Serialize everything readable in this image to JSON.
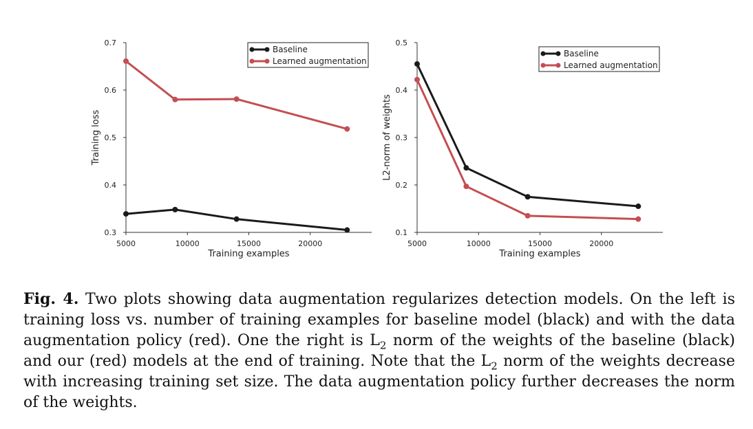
{
  "chart_data": [
    {
      "type": "line",
      "xlabel": "Training examples",
      "ylabel": "Training loss",
      "xlim": [
        5000,
        25000
      ],
      "ylim": [
        0.3,
        0.7
      ],
      "xticks": [
        5000,
        10000,
        15000,
        20000
      ],
      "yticks": [
        0.3,
        0.4,
        0.5,
        0.6,
        0.7
      ],
      "xtick_labels": [
        "5000",
        "10000",
        "15000",
        "20000"
      ],
      "ytick_labels": [
        "0.3",
        "0.4",
        "0.5",
        "0.6",
        "0.7"
      ],
      "grid": false,
      "legend_position": "top-right",
      "x": [
        5000,
        9000,
        14000,
        23000
      ],
      "series": [
        {
          "name": "Baseline",
          "color": "#1a1a1a",
          "values": [
            0.339,
            0.348,
            0.328,
            0.305
          ]
        },
        {
          "name": "Learned augmentation",
          "color": "#c44e52",
          "values": [
            0.661,
            0.58,
            0.581,
            0.518
          ]
        }
      ]
    },
    {
      "type": "line",
      "xlabel": "Training examples",
      "ylabel": "L2-norm of weights",
      "xlim": [
        5000,
        25000
      ],
      "ylim": [
        0.1,
        0.5
      ],
      "xticks": [
        5000,
        10000,
        15000,
        20000
      ],
      "yticks": [
        0.1,
        0.2,
        0.3,
        0.4,
        0.5
      ],
      "xtick_labels": [
        "5000",
        "10000",
        "15000",
        "20000"
      ],
      "ytick_labels": [
        "0.1",
        "0.2",
        "0.3",
        "0.4",
        "0.5"
      ],
      "grid": false,
      "legend_position": "top-right",
      "x": [
        5000,
        9000,
        14000,
        23000
      ],
      "series": [
        {
          "name": "Baseline",
          "color": "#1a1a1a",
          "values": [
            0.455,
            0.236,
            0.175,
            0.155
          ]
        },
        {
          "name": "Learned augmentation",
          "color": "#c44e52",
          "values": [
            0.422,
            0.197,
            0.135,
            0.128
          ]
        }
      ]
    }
  ],
  "caption": {
    "label": "Fig. 4.",
    "text_1": " Two plots showing data augmentation regularizes detection models. On the left is training loss vs. number of training examples for baseline model (black) and with the data augmentation policy (red). One the right is L",
    "sub_1": "2",
    "text_2": " norm of the weights of the baseline (black) and our (red) models at the end of training. Note that the L",
    "sub_2": "2",
    "text_3": " norm of the weights decrease with increasing training set size. The data augmentation policy further decreases the norm of the weights."
  }
}
